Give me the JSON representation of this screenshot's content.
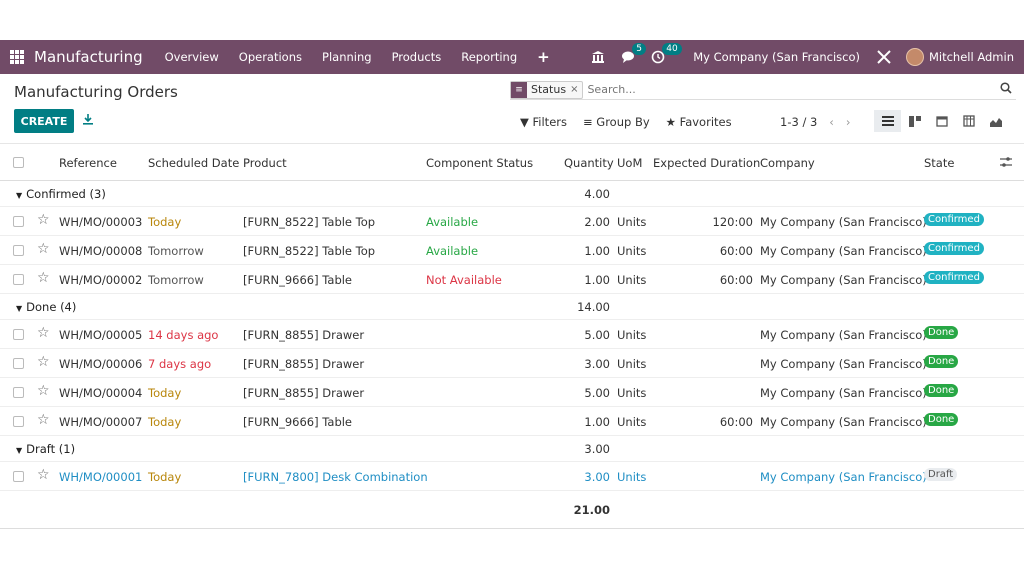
{
  "navbar": {
    "app_name": "Manufacturing",
    "menu": [
      "Overview",
      "Operations",
      "Planning",
      "Products",
      "Reporting"
    ],
    "plus": "+",
    "messages_count": "5",
    "activities_count": "40",
    "company": "My Company (San Francisco)",
    "user": "Mitchell Admin"
  },
  "control": {
    "title": "Manufacturing Orders",
    "facet_label": "Status",
    "facet_close": "×",
    "search_placeholder": "Search...",
    "create_label": "CREATE",
    "filters_label": "Filters",
    "groupby_label": "Group By",
    "favorites_label": "Favorites",
    "pager": "1-3 / 3"
  },
  "columns": {
    "reference": "Reference",
    "scheduled_date": "Scheduled Date",
    "product": "Product",
    "component_status": "Component Status",
    "quantity": "Quantity",
    "uom": "UoM",
    "expected_duration": "Expected Duration",
    "company": "Company",
    "state": "State"
  },
  "groups": [
    {
      "label": "Confirmed (3)",
      "qty": "4.00",
      "rows": [
        {
          "ref": "WH/MO/00003",
          "date": "Today",
          "date_color": "#b8860b",
          "product": "[FURN_8522] Table Top",
          "comp": "Available",
          "comp_color": "#28a745",
          "qty": "2.00",
          "uom": "Units",
          "dur": "120:00",
          "company": "My Company (San Francisco)",
          "state": "Confirmed",
          "state_class": "st-confirmed"
        },
        {
          "ref": "WH/MO/00008",
          "date": "Tomorrow",
          "date_color": "#555555",
          "product": "[FURN_8522] Table Top",
          "comp": "Available",
          "comp_color": "#28a745",
          "qty": "1.00",
          "uom": "Units",
          "dur": "60:00",
          "company": "My Company (San Francisco)",
          "state": "Confirmed",
          "state_class": "st-confirmed"
        },
        {
          "ref": "WH/MO/00002",
          "date": "Tomorrow",
          "date_color": "#555555",
          "product": "[FURN_9666] Table",
          "comp": "Not Available",
          "comp_color": "#dc3545",
          "qty": "1.00",
          "uom": "Units",
          "dur": "60:00",
          "company": "My Company (San Francisco)",
          "state": "Confirmed",
          "state_class": "st-confirmed"
        }
      ]
    },
    {
      "label": "Done (4)",
      "qty": "14.00",
      "rows": [
        {
          "ref": "WH/MO/00005",
          "date": "14 days ago",
          "date_color": "#dc3545",
          "product": "[FURN_8855] Drawer",
          "comp": "",
          "comp_color": "#333333",
          "qty": "5.00",
          "uom": "Units",
          "dur": "",
          "company": "My Company (San Francisco)",
          "state": "Done",
          "state_class": "st-done"
        },
        {
          "ref": "WH/MO/00006",
          "date": "7 days ago",
          "date_color": "#dc3545",
          "product": "[FURN_8855] Drawer",
          "comp": "",
          "comp_color": "#333333",
          "qty": "3.00",
          "uom": "Units",
          "dur": "",
          "company": "My Company (San Francisco)",
          "state": "Done",
          "state_class": "st-done"
        },
        {
          "ref": "WH/MO/00004",
          "date": "Today",
          "date_color": "#b8860b",
          "product": "[FURN_8855] Drawer",
          "comp": "",
          "comp_color": "#333333",
          "qty": "5.00",
          "uom": "Units",
          "dur": "",
          "company": "My Company (San Francisco)",
          "state": "Done",
          "state_class": "st-done"
        },
        {
          "ref": "WH/MO/00007",
          "date": "Today",
          "date_color": "#b8860b",
          "product": "[FURN_9666] Table",
          "comp": "",
          "comp_color": "#333333",
          "qty": "1.00",
          "uom": "Units",
          "dur": "60:00",
          "company": "My Company (San Francisco)",
          "state": "Done",
          "state_class": "st-done"
        }
      ]
    },
    {
      "label": "Draft (1)",
      "qty": "3.00",
      "rows": [
        {
          "ref": "WH/MO/00001",
          "date": "Today",
          "date_color": "#b8860b",
          "product": "[FURN_7800] Desk Combination",
          "comp": "",
          "comp_color": "#333333",
          "qty": "3.00",
          "uom": "Units",
          "dur": "",
          "company": "My Company (San Francisco)",
          "state": "Draft",
          "state_class": "st-draft",
          "text_color": "#1f8ec4"
        }
      ]
    }
  ],
  "total_qty": "21.00",
  "colors": {
    "brand": "#714B67",
    "accent": "#017e84"
  }
}
